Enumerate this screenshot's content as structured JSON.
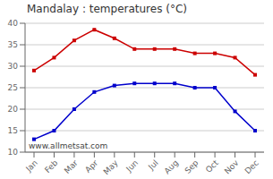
{
  "chart_data": {
    "type": "line",
    "title": "Mandalay : temperatures (°C)",
    "categories": [
      "Jan",
      "Feb",
      "Mar",
      "Apr",
      "May",
      "Jun",
      "Jul",
      "Aug",
      "Sep",
      "Oct",
      "Nov",
      "Dec"
    ],
    "series": [
      {
        "color": "#cc0000",
        "marker": "square",
        "values": [
          29,
          32,
          36,
          38.5,
          36.5,
          34,
          34,
          34,
          33,
          33,
          32,
          28
        ]
      },
      {
        "color": "#0000cc",
        "marker": "square",
        "values": [
          13,
          15,
          20,
          24,
          25.5,
          26,
          26,
          26,
          25,
          25,
          19.5,
          15
        ]
      }
    ],
    "ylim": [
      10,
      40
    ],
    "yticks": [
      10,
      15,
      20,
      25,
      30,
      35,
      40
    ],
    "grid": true,
    "annotation": "www.allmetsat.com"
  }
}
